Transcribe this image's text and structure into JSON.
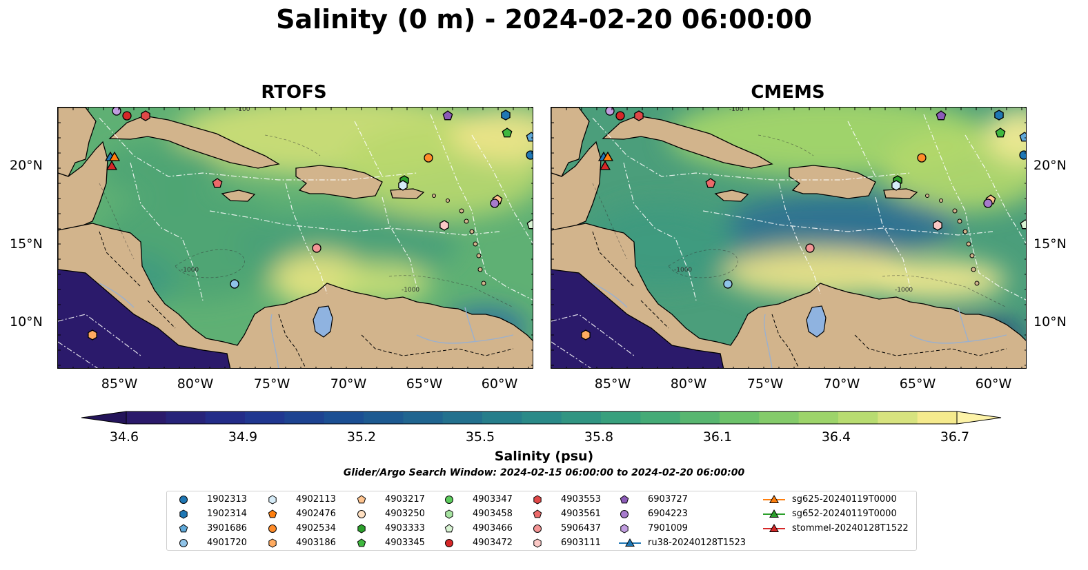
{
  "figure": {
    "title": "Salinity (0 m) - 2024-02-20 06:00:00",
    "panels": [
      {
        "title": "RTOFS"
      },
      {
        "title": "CMEMS"
      }
    ],
    "lat_ticks": [
      "20°N",
      "15°N",
      "10°N"
    ],
    "lon_ticks": [
      "85°W",
      "80°W",
      "75°W",
      "70°W",
      "65°W",
      "60°W"
    ],
    "colorbar": {
      "label": "Salinity (psu)",
      "min": 34.6,
      "max": 36.7,
      "ticks": [
        "34.6",
        "34.9",
        "35.2",
        "35.5",
        "35.8",
        "36.1",
        "36.4",
        "36.7"
      ],
      "colormap": [
        "#2b1a6b",
        "#21318f",
        "#1b4f93",
        "#216b8f",
        "#2a8a88",
        "#3ba57a",
        "#6cc26a",
        "#a9d86a",
        "#f5ea8d"
      ]
    },
    "search_window": "Glider/Argo Search Window: 2024-02-15 06:00:00 to 2024-02-20 06:00:00",
    "land_color": "#d2b48c",
    "contour_labels": [
      "-100",
      "-1000"
    ]
  },
  "legend": {
    "items": [
      {
        "label": "1902313",
        "marker": "circle",
        "color": "#1f77b4"
      },
      {
        "label": "1902314",
        "marker": "hexagon",
        "color": "#1f77b4"
      },
      {
        "label": "3901686",
        "marker": "pentagon",
        "color": "#5fa8d8"
      },
      {
        "label": "4901720",
        "marker": "circle",
        "color": "#8fc3e8"
      },
      {
        "label": "4902113",
        "marker": "hexagon",
        "color": "#d6ecf8"
      },
      {
        "label": "4902476",
        "marker": "pentagon",
        "color": "#ff7f0e"
      },
      {
        "label": "4902534",
        "marker": "circle",
        "color": "#ff8c2a"
      },
      {
        "label": "4903186",
        "marker": "hexagon",
        "color": "#ffab60"
      },
      {
        "label": "4903217",
        "marker": "pentagon",
        "color": "#ffc48f"
      },
      {
        "label": "4903250",
        "marker": "circle",
        "color": "#ffe0c2"
      },
      {
        "label": "4903333",
        "marker": "hexagon",
        "color": "#2ca02c"
      },
      {
        "label": "4903345",
        "marker": "pentagon",
        "color": "#3fb83f"
      },
      {
        "label": "4903347",
        "marker": "circle",
        "color": "#5dcc5d"
      },
      {
        "label": "4903458",
        "marker": "hexagon",
        "color": "#a6e3a1"
      },
      {
        "label": "4903466",
        "marker": "pentagon",
        "color": "#d8f3d3"
      },
      {
        "label": "4903472",
        "marker": "circle",
        "color": "#d62728"
      },
      {
        "label": "4903553",
        "marker": "hexagon",
        "color": "#e04848"
      },
      {
        "label": "4903561",
        "marker": "pentagon",
        "color": "#ec6a6a"
      },
      {
        "label": "5906437",
        "marker": "circle",
        "color": "#f49595"
      },
      {
        "label": "6903111",
        "marker": "hexagon",
        "color": "#fbc8c5"
      },
      {
        "label": "6903727",
        "marker": "pentagon",
        "color": "#8c5bb8"
      },
      {
        "label": "6904223",
        "marker": "circle",
        "color": "#a77bcc"
      },
      {
        "label": "7901009",
        "marker": "hexagon",
        "color": "#c19de0"
      },
      {
        "label": "ru38-20240128T1523",
        "marker": "triangle-line",
        "color": "#1f77b4"
      },
      {
        "label": "sg625-20240119T0000",
        "marker": "triangle-line",
        "color": "#ff7f0e"
      },
      {
        "label": "sg652-20240119T0000",
        "marker": "triangle-line",
        "color": "#2ca02c"
      },
      {
        "label": "stommel-20240128T1522",
        "marker": "triangle-line",
        "color": "#d62728"
      }
    ]
  }
}
